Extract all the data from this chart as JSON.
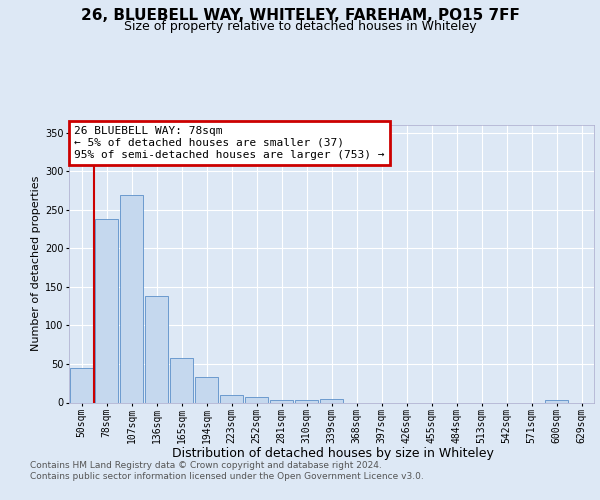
{
  "title": "26, BLUEBELL WAY, WHITELEY, FAREHAM, PO15 7FF",
  "subtitle": "Size of property relative to detached houses in Whiteley",
  "xlabel": "Distribution of detached houses by size in Whiteley",
  "ylabel": "Number of detached properties",
  "categories": [
    "50sqm",
    "78sqm",
    "107sqm",
    "136sqm",
    "165sqm",
    "194sqm",
    "223sqm",
    "252sqm",
    "281sqm",
    "310sqm",
    "339sqm",
    "368sqm",
    "397sqm",
    "426sqm",
    "455sqm",
    "484sqm",
    "513sqm",
    "542sqm",
    "571sqm",
    "600sqm",
    "629sqm"
  ],
  "values": [
    45,
    238,
    269,
    138,
    58,
    33,
    10,
    7,
    3,
    3,
    4,
    0,
    0,
    0,
    0,
    0,
    0,
    0,
    0,
    3,
    0
  ],
  "bar_color": "#c5d8ee",
  "bar_edge_color": "#5b8fc9",
  "red_line_x": 0.5,
  "ylim": [
    0,
    360
  ],
  "yticks": [
    0,
    50,
    100,
    150,
    200,
    250,
    300,
    350
  ],
  "annotation_title": "26 BLUEBELL WAY: 78sqm",
  "annotation_line1": "← 5% of detached houses are smaller (37)",
  "annotation_line2": "95% of semi-detached houses are larger (753) →",
  "annotation_box_facecolor": "#ffffff",
  "annotation_box_edgecolor": "#cc0000",
  "red_line_color": "#cc0000",
  "footnote1": "Contains HM Land Registry data © Crown copyright and database right 2024.",
  "footnote2": "Contains public sector information licensed under the Open Government Licence v3.0.",
  "bg_color": "#dde8f5",
  "grid_color": "#ffffff",
  "title_fontsize": 11,
  "subtitle_fontsize": 9,
  "ylabel_fontsize": 8,
  "xlabel_fontsize": 9,
  "tick_fontsize": 7,
  "ann_fontsize": 8,
  "footnote_fontsize": 6.5
}
